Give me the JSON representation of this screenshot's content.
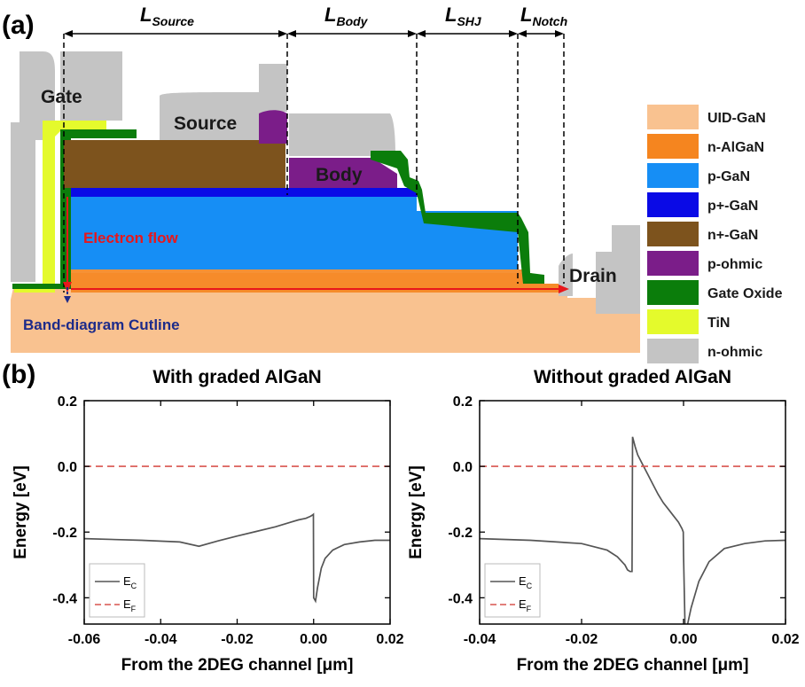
{
  "panel_a": {
    "label": "(a)",
    "dimensions": [
      {
        "letter": "L",
        "sub": "Source"
      },
      {
        "letter": "L",
        "sub": "Body"
      },
      {
        "letter": "L",
        "sub": "SHJ"
      },
      {
        "letter": "L",
        "sub": "Notch"
      }
    ],
    "regions": {
      "gate": "Gate",
      "source": "Source",
      "body": "Body",
      "drain": "Drain",
      "electron_flow": "Electron flow",
      "cutline": "Band-diagram Cutline"
    },
    "legend": [
      {
        "label": "UID-GaN",
        "color": "#f9c290"
      },
      {
        "label": "n-AlGaN",
        "color": "#f5851f"
      },
      {
        "label": "p-GaN",
        "color": "#168ef5"
      },
      {
        "label": "p+-GaN",
        "color": "#0a0ae6"
      },
      {
        "label": "n+-GaN",
        "color": "#7d531d"
      },
      {
        "label": "p-ohmic",
        "color": "#7b1d89"
      },
      {
        "label": "Gate Oxide",
        "color": "#0b7d0b"
      },
      {
        "label": "TiN",
        "color": "#e4fa2c"
      },
      {
        "label": "n-ohmic",
        "color": "#c4c4c4"
      }
    ]
  },
  "panel_b": {
    "label": "(b)"
  },
  "chart_data": [
    {
      "type": "line",
      "title": "With graded AlGaN",
      "xlabel": "From the 2DEG channel [μm]",
      "ylabel": "Energy [eV]",
      "xlim": [
        -0.06,
        0.02
      ],
      "ylim": [
        -0.48,
        0.2
      ],
      "xticks": [
        "-0.06",
        "-0.04",
        "-0.02",
        "0.00",
        "0.02"
      ],
      "yticks": [
        "0.2",
        "0.0",
        "-0.2",
        "-0.4"
      ],
      "legend_position": "bottom-left",
      "series": [
        {
          "name": "EC",
          "name_base": "E",
          "name_sub": "C",
          "color": "#555555",
          "dash": "solid",
          "x": [
            -0.06,
            -0.045,
            -0.035,
            -0.03,
            -0.025,
            -0.02,
            -0.015,
            -0.01,
            -0.006,
            -0.004,
            -0.002,
            -0.0008,
            -0.0003,
            -5e-05,
            0.0,
            0.0005,
            0.001,
            0.002,
            0.003,
            0.005,
            0.008,
            0.012,
            0.016,
            0.02
          ],
          "y": [
            -0.22,
            -0.225,
            -0.23,
            -0.243,
            -0.227,
            -0.212,
            -0.198,
            -0.184,
            -0.17,
            -0.163,
            -0.158,
            -0.152,
            -0.148,
            -0.146,
            -0.4,
            -0.41,
            -0.37,
            -0.31,
            -0.28,
            -0.255,
            -0.238,
            -0.23,
            -0.225,
            -0.225
          ]
        },
        {
          "name": "EF",
          "name_base": "E",
          "name_sub": "F",
          "color": "#d9534f",
          "dash": "dashed",
          "x": [
            -0.06,
            0.02
          ],
          "y": [
            0.0,
            0.0
          ]
        }
      ]
    },
    {
      "type": "line",
      "title": "Without graded AlGaN",
      "xlabel": "From the 2DEG channel [μm]",
      "ylabel": "Energy [eV]",
      "xlim": [
        -0.04,
        0.02
      ],
      "ylim": [
        -0.48,
        0.2
      ],
      "xticks": [
        "-0.04",
        "-0.02",
        "0.00",
        "0.02"
      ],
      "yticks": [
        "0.2",
        "0.0",
        "-0.2",
        "-0.4"
      ],
      "legend_position": "bottom-left",
      "series": [
        {
          "name": "EC",
          "name_base": "E",
          "name_sub": "C",
          "color": "#555555",
          "dash": "solid",
          "x": [
            -0.04,
            -0.03,
            -0.02,
            -0.015,
            -0.013,
            -0.0115,
            -0.011,
            -0.0105,
            -0.0101,
            -0.01,
            -0.0095,
            -0.009,
            -0.008,
            -0.007,
            -0.006,
            -0.005,
            -0.004,
            -0.003,
            -0.002,
            -0.001,
            -0.0003,
            -5e-05,
            0.0,
            0.0003,
            0.0008,
            0.0015,
            0.003,
            0.005,
            0.008,
            0.012,
            0.016,
            0.02
          ],
          "y": [
            -0.22,
            -0.225,
            -0.235,
            -0.255,
            -0.275,
            -0.3,
            -0.315,
            -0.32,
            -0.32,
            0.09,
            0.06,
            0.035,
            0.005,
            -0.025,
            -0.055,
            -0.085,
            -0.11,
            -0.13,
            -0.15,
            -0.17,
            -0.19,
            -0.2,
            -0.27,
            -0.49,
            -0.48,
            -0.43,
            -0.35,
            -0.29,
            -0.25,
            -0.235,
            -0.227,
            -0.225
          ]
        },
        {
          "name": "EF",
          "name_base": "E",
          "name_sub": "F",
          "color": "#d9534f",
          "dash": "dashed",
          "x": [
            -0.04,
            0.02
          ],
          "y": [
            0.0,
            0.0
          ]
        }
      ]
    }
  ]
}
